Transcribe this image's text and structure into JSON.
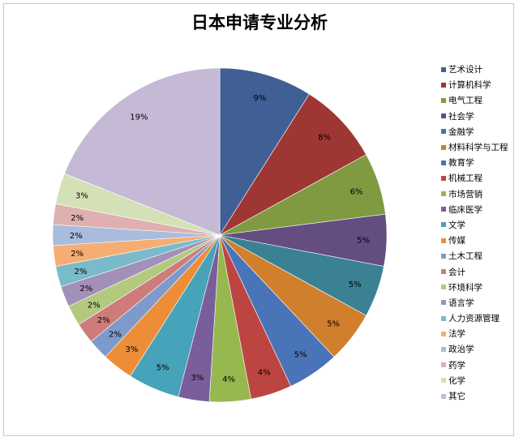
{
  "chart_data": {
    "type": "pie",
    "title": "日本申请专业分析",
    "legend_position": "right",
    "start_angle": "12 o'clock",
    "direction": "clockwise",
    "slices": [
      {
        "label": "艺术设计",
        "value": 9,
        "display": "9%",
        "color": "#3F5F95"
      },
      {
        "label": "计算机科学",
        "value": 8,
        "display": "8%",
        "color": "#9E3734"
      },
      {
        "label": "电气工程",
        "value": 6,
        "display": "6%",
        "color": "#7F9A41"
      },
      {
        "label": "社会学",
        "value": 5,
        "display": "5%",
        "color": "#644D80"
      },
      {
        "label": "金融学",
        "value": 5,
        "display": "5%",
        "color": "#3A8194"
      },
      {
        "label": "材料科学与工程",
        "value": 5,
        "display": "5%",
        "color": "#D0802D"
      },
      {
        "label": "教育学",
        "value": 5,
        "display": "5%",
        "color": "#4A74B8"
      },
      {
        "label": "机械工程",
        "value": 4,
        "display": "4%",
        "color": "#BD4541"
      },
      {
        "label": "市场营销",
        "value": 4,
        "display": "4%",
        "color": "#96B84F"
      },
      {
        "label": "临床医学",
        "value": 3,
        "display": "3%",
        "color": "#7A5E9C"
      },
      {
        "label": "文学",
        "value": 5,
        "display": "5%",
        "color": "#46A3B9"
      },
      {
        "label": "传媒",
        "value": 3,
        "display": "3%",
        "color": "#EE8D38"
      },
      {
        "label": "土木工程",
        "value": 2,
        "display": "2%",
        "color": "#7E9ACB"
      },
      {
        "label": "会计",
        "value": 2,
        "display": "2%",
        "color": "#CD7C7B"
      },
      {
        "label": "环境科学",
        "value": 2,
        "display": "2%",
        "color": "#B2C97E"
      },
      {
        "label": "语言学",
        "value": 2,
        "display": "2%",
        "color": "#A290B8"
      },
      {
        "label": "人力资源管理",
        "value": 2,
        "display": "2%",
        "color": "#79BACB"
      },
      {
        "label": "法学",
        "value": 2,
        "display": "2%",
        "color": "#F5AD74"
      },
      {
        "label": "政治学",
        "value": 2,
        "display": "2%",
        "color": "#A9BCDD"
      },
      {
        "label": "药学",
        "value": 2,
        "display": "2%",
        "color": "#DEB0AF"
      },
      {
        "label": "化学",
        "value": 3,
        "display": "3%",
        "color": "#D4E1B7"
      },
      {
        "label": "其它",
        "value": 19,
        "display": "19%",
        "color": "#C5B9D6"
      }
    ]
  }
}
